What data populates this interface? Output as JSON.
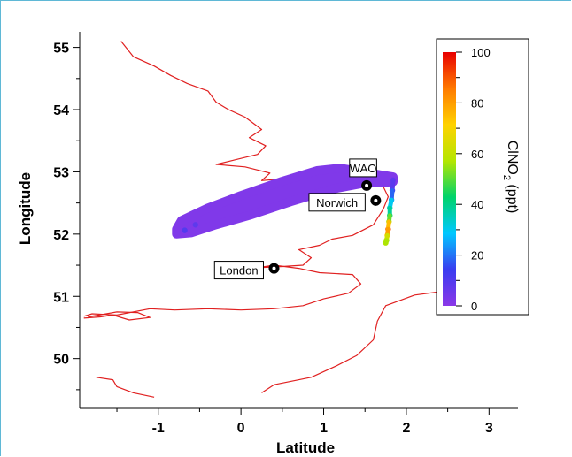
{
  "chart_data": {
    "type": "scatter",
    "title": "",
    "xlabel": "Latitude",
    "ylabel": "Longitude",
    "xlim": [
      -1.95,
      3.35
    ],
    "ylim": [
      49.2,
      55.25
    ],
    "xticks": [
      "-1",
      "0",
      "1",
      "2",
      "3"
    ],
    "xtick_values": [
      -1,
      0,
      1,
      2,
      3
    ],
    "yticks": [
      "50",
      "51",
      "52",
      "53",
      "54",
      "55"
    ],
    "ytick_values": [
      50,
      51,
      52,
      53,
      54,
      55
    ],
    "grid": false,
    "colorbar": {
      "label_main": "ClNO",
      "label_sub": "2",
      "label_unit": " (ppt)",
      "range": [
        0,
        100
      ],
      "ticks": [
        "0",
        "20",
        "40",
        "60",
        "80",
        "100"
      ],
      "tick_values": [
        0,
        20,
        40,
        60,
        80,
        100
      ],
      "colormap": [
        "#8b38e8",
        "#3a3cf0",
        "#00c8ff",
        "#00d36a",
        "#b4e600",
        "#ffd200",
        "#ff7a00",
        "#e80000"
      ]
    },
    "sites": [
      {
        "name": "WAO",
        "lon": 1.52,
        "lat": 52.78,
        "label_side": "above"
      },
      {
        "name": "Norwich",
        "lon": 1.63,
        "lat": 52.54,
        "label_side": "left"
      },
      {
        "name": "London",
        "lon": 0.4,
        "lat": 51.45,
        "label_side": "left"
      }
    ],
    "plume": {
      "value": 2,
      "outline": [
        [
          -0.78,
          52.08
        ],
        [
          -0.72,
          52.22
        ],
        [
          -0.4,
          52.42
        ],
        [
          0.0,
          52.62
        ],
        [
          0.5,
          52.85
        ],
        [
          0.92,
          53.02
        ],
        [
          1.2,
          53.06
        ],
        [
          1.6,
          52.97
        ],
        [
          1.84,
          52.92
        ],
        [
          1.84,
          52.84
        ],
        [
          1.5,
          52.82
        ],
        [
          1.1,
          52.72
        ],
        [
          0.6,
          52.52
        ],
        [
          0.1,
          52.3
        ],
        [
          -0.3,
          52.15
        ],
        [
          -0.6,
          52.02
        ],
        [
          -0.78,
          52.0
        ]
      ]
    },
    "track": [
      {
        "lon": 1.84,
        "lat": 52.87,
        "clno2": 5
      },
      {
        "lon": 1.83,
        "lat": 52.7,
        "clno2": 12
      },
      {
        "lon": 1.82,
        "lat": 52.55,
        "clno2": 25
      },
      {
        "lon": 1.8,
        "lat": 52.42,
        "clno2": 35
      },
      {
        "lon": 1.8,
        "lat": 52.3,
        "clno2": 42
      },
      {
        "lon": 1.79,
        "lat": 52.2,
        "clno2": 60
      },
      {
        "lon": 1.78,
        "lat": 52.08,
        "clno2": 90
      },
      {
        "lon": 1.77,
        "lat": 51.98,
        "clno2": 70
      },
      {
        "lon": 1.76,
        "lat": 51.9,
        "clno2": 55
      },
      {
        "lon": 1.75,
        "lat": 51.86,
        "clno2": 58
      },
      {
        "lon": -0.55,
        "lat": 52.15,
        "clno2": 8
      },
      {
        "lon": -0.68,
        "lat": 52.06,
        "clno2": 10
      }
    ],
    "coastline": [
      [
        [
          -1.45,
          55.1
        ],
        [
          -1.3,
          54.85
        ],
        [
          -1.05,
          54.7
        ],
        [
          -0.85,
          54.55
        ],
        [
          -0.65,
          54.42
        ],
        [
          -0.4,
          54.3
        ],
        [
          -0.3,
          54.12
        ],
        [
          -0.15,
          54.0
        ],
        [
          0.05,
          53.88
        ],
        [
          0.25,
          53.68
        ],
        [
          0.1,
          53.55
        ],
        [
          0.3,
          53.42
        ],
        [
          0.2,
          53.28
        ],
        [
          -0.05,
          53.2
        ],
        [
          -0.3,
          53.12
        ],
        [
          0.05,
          53.08
        ],
        [
          0.35,
          52.98
        ],
        [
          0.25,
          52.86
        ],
        [
          0.6,
          52.9
        ],
        [
          0.95,
          52.96
        ],
        [
          1.45,
          52.94
        ],
        [
          1.7,
          52.82
        ],
        [
          1.78,
          52.6
        ],
        [
          1.72,
          52.4
        ],
        [
          1.6,
          52.15
        ],
        [
          1.35,
          51.98
        ],
        [
          1.1,
          51.92
        ],
        [
          0.95,
          51.82
        ],
        [
          0.7,
          51.75
        ],
        [
          0.85,
          51.62
        ],
        [
          0.75,
          51.5
        ],
        [
          0.5,
          51.48
        ],
        [
          0.2,
          51.46
        ],
        [
          0.4,
          51.5
        ],
        [
          0.7,
          51.45
        ],
        [
          0.95,
          51.38
        ],
        [
          1.35,
          51.35
        ],
        [
          1.45,
          51.2
        ],
        [
          1.3,
          51.05
        ],
        [
          1.0,
          50.96
        ],
        [
          0.75,
          50.85
        ],
        [
          0.4,
          50.8
        ],
        [
          0.0,
          50.78
        ],
        [
          -0.4,
          50.8
        ],
        [
          -0.8,
          50.78
        ],
        [
          -1.1,
          50.8
        ],
        [
          -1.5,
          50.7
        ],
        [
          -1.8,
          50.72
        ],
        [
          -1.9,
          50.68
        ]
      ],
      [
        [
          -1.9,
          50.65
        ],
        [
          -1.7,
          50.67
        ],
        [
          -1.55,
          50.7
        ],
        [
          -1.35,
          50.62
        ],
        [
          -1.1,
          50.66
        ],
        [
          -1.25,
          50.74
        ],
        [
          -1.5,
          50.75
        ],
        [
          -1.85,
          50.67
        ]
      ],
      [
        [
          -1.75,
          49.7
        ],
        [
          -1.55,
          49.66
        ],
        [
          -1.5,
          49.55
        ],
        [
          -1.3,
          49.45
        ],
        [
          -1.05,
          49.38
        ]
      ],
      [
        [
          0.25,
          49.45
        ],
        [
          0.4,
          49.58
        ],
        [
          0.85,
          49.7
        ],
        [
          1.15,
          49.88
        ],
        [
          1.4,
          50.05
        ],
        [
          1.6,
          50.3
        ],
        [
          1.65,
          50.6
        ],
        [
          1.75,
          50.85
        ],
        [
          2.1,
          51.02
        ],
        [
          2.55,
          51.1
        ],
        [
          2.9,
          51.2
        ],
        [
          3.3,
          51.35
        ]
      ]
    ]
  }
}
